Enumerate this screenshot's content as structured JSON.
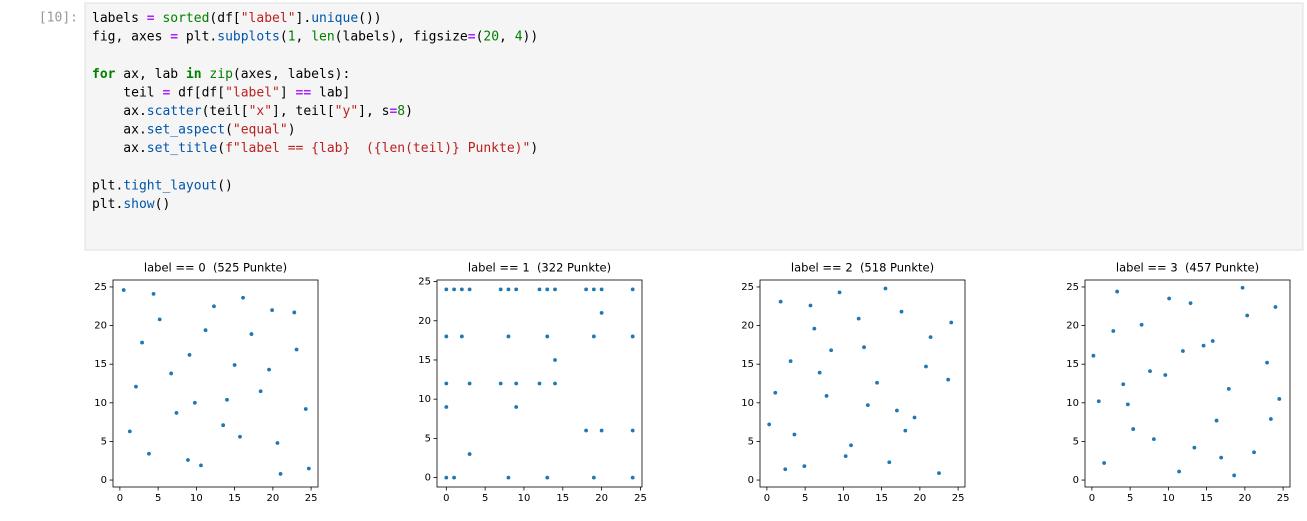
{
  "cell": {
    "prompt": "[10]:",
    "code": [
      [
        "labels = sorted(df[\"label\"].unique())",
        "fig, axes = plt.subplots(1, len(labels), figsize=(20, 4))"
      ],
      [
        "for ax, lab in zip(axes, labels):",
        "    teil = df[df[\"label\"] == lab]",
        "    ax.scatter(teil[\"x\"], teil[\"y\"], s=8)",
        "    ax.set_aspect(\"equal\")",
        "    ax.set_title(f\"label == {lab}  ({len(teil)} Punkte)\")"
      ],
      [
        "plt.tight_layout()",
        "plt.show()"
      ]
    ]
  },
  "chart_data": [
    {
      "type": "scatter",
      "title": "label == 0  (525 Punkte)",
      "color": "#1f77b4",
      "x": [
        0.5,
        2.1,
        3.8,
        5.2,
        7.4,
        9.1,
        10.6,
        12.3,
        14.0,
        15.7,
        17.2,
        19.5,
        21.0,
        22.8,
        24.3,
        1.3,
        4.4,
        6.7,
        8.9,
        11.2,
        13.5,
        16.1,
        18.4,
        20.6,
        23.1,
        24.7,
        2.9,
        9.8,
        15.0,
        19.9
      ],
      "y": [
        24.6,
        12.1,
        3.4,
        20.8,
        8.7,
        16.2,
        1.9,
        22.5,
        10.4,
        5.6,
        18.9,
        14.3,
        0.8,
        21.7,
        9.2,
        6.3,
        24.1,
        13.8,
        2.6,
        19.4,
        7.1,
        23.6,
        11.5,
        4.8,
        16.9,
        1.5,
        17.8,
        10.0,
        14.9,
        22.0
      ],
      "xlim": [
        -0.9,
        25.9
      ],
      "ylim": [
        -0.9,
        25.9
      ],
      "xticks": [
        0,
        5,
        10,
        15,
        20,
        25
      ],
      "yticks": [
        0,
        5,
        10,
        15,
        20,
        25
      ]
    },
    {
      "type": "scatter",
      "title": "label == 1  (322 Punkte)",
      "color": "#1f77b4",
      "x": [
        0,
        1,
        2,
        3,
        7,
        8,
        9,
        12,
        13,
        14,
        18,
        19,
        20,
        24,
        0,
        2,
        8,
        13,
        19,
        24,
        0,
        3,
        7,
        9,
        12,
        14,
        18,
        20,
        24,
        1,
        0,
        8,
        13,
        19,
        24,
        3,
        9,
        14,
        20,
        0
      ],
      "y": [
        24,
        24,
        24,
        24,
        24,
        24,
        24,
        24,
        24,
        24,
        24,
        24,
        24,
        24,
        18,
        18,
        18,
        18,
        18,
        18,
        12,
        12,
        12,
        12,
        12,
        12,
        6,
        6,
        6,
        0,
        0,
        0,
        0,
        0,
        0,
        3,
        9,
        15,
        21,
        9
      ],
      "xlim": [
        -1.2,
        25.2
      ],
      "ylim": [
        -1.2,
        25.2
      ],
      "xticks": [
        0,
        5,
        10,
        15,
        20,
        25
      ],
      "yticks": [
        0,
        5,
        10,
        15,
        20,
        25
      ]
    },
    {
      "type": "scatter",
      "title": "label == 2  (518 Punkte)",
      "color": "#1f77b4",
      "x": [
        0.3,
        1.8,
        3.1,
        4.9,
        6.2,
        7.8,
        9.5,
        11.0,
        12.7,
        14.4,
        16.0,
        17.6,
        19.3,
        20.8,
        22.5,
        24.1,
        1.1,
        3.6,
        5.7,
        8.4,
        10.3,
        13.2,
        15.5,
        18.1,
        21.4,
        23.7,
        2.4,
        6.9,
        12.0,
        17.0
      ],
      "y": [
        7.2,
        23.1,
        15.4,
        1.8,
        19.6,
        10.9,
        24.3,
        4.5,
        17.2,
        12.6,
        2.3,
        21.8,
        8.1,
        14.7,
        0.9,
        20.4,
        11.3,
        5.9,
        22.6,
        16.8,
        3.1,
        9.7,
        24.8,
        6.4,
        18.5,
        13.0,
        1.4,
        13.9,
        20.9,
        9.0
      ],
      "xlim": [
        -0.9,
        25.9
      ],
      "ylim": [
        -0.9,
        25.9
      ],
      "xticks": [
        0,
        5,
        10,
        15,
        20,
        25
      ],
      "yticks": [
        0,
        5,
        10,
        15,
        20,
        25
      ]
    },
    {
      "type": "scatter",
      "title": "label == 3  (457 Punkte)",
      "color": "#1f77b4",
      "x": [
        0.2,
        1.6,
        3.3,
        4.7,
        6.5,
        8.1,
        9.6,
        11.4,
        12.9,
        14.6,
        16.3,
        17.9,
        19.7,
        21.2,
        22.9,
        24.5,
        0.9,
        2.8,
        5.4,
        7.6,
        10.1,
        13.4,
        15.8,
        18.6,
        20.3,
        23.4,
        4.1,
        11.9,
        16.9,
        24.0
      ],
      "y": [
        16.1,
        2.2,
        24.4,
        9.8,
        20.1,
        5.3,
        13.6,
        1.1,
        22.9,
        17.4,
        7.7,
        11.8,
        24.9,
        3.6,
        15.2,
        10.5,
        10.2,
        19.3,
        6.6,
        14.1,
        23.5,
        4.2,
        18.0,
        0.6,
        21.3,
        7.9,
        12.4,
        16.7,
        2.9,
        22.4
      ],
      "xlim": [
        -0.9,
        25.9
      ],
      "ylim": [
        -0.9,
        25.9
      ],
      "xticks": [
        0,
        5,
        10,
        15,
        20,
        25
      ],
      "yticks": [
        0,
        5,
        10,
        15,
        20,
        25
      ]
    }
  ]
}
